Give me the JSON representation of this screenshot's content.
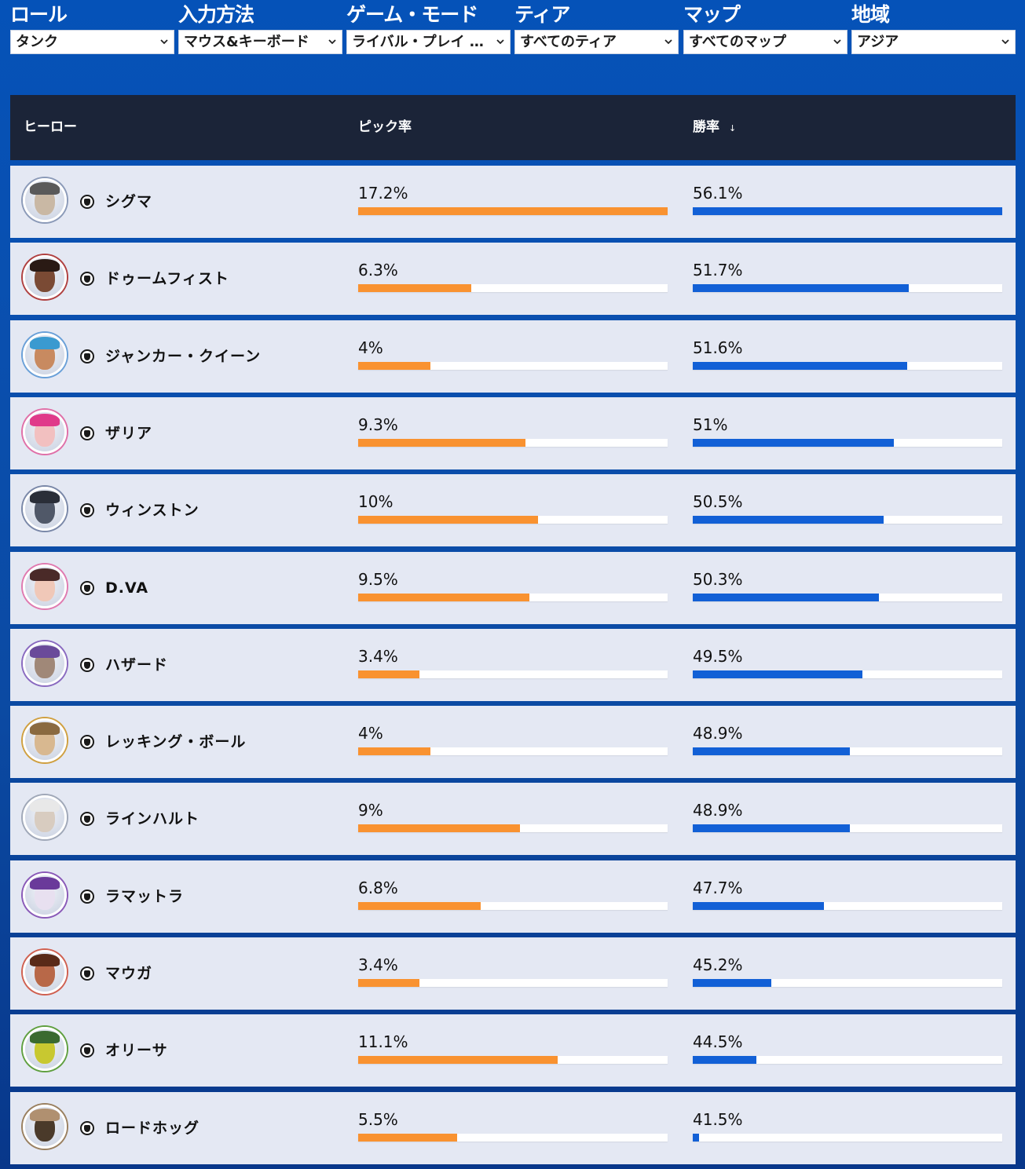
{
  "filters": [
    {
      "label": "ロール",
      "value": "タンク"
    },
    {
      "label": "入力方法",
      "value": "マウス&キーボード"
    },
    {
      "label": "ゲーム・モード",
      "value": "ライバル・プレイ …"
    },
    {
      "label": "ティア",
      "value": "すべてのティア"
    },
    {
      "label": "マップ",
      "value": "すべてのマップ"
    },
    {
      "label": "地域",
      "value": "アジア"
    }
  ],
  "table": {
    "headers": {
      "hero": "ヒーロー",
      "pick": "ピック率",
      "win": "勝率",
      "sort_indicator": "↓"
    },
    "rows": [
      {
        "name": "シグマ",
        "pick": "17.2%",
        "pick_pct": 17.2,
        "win": "56.1%",
        "win_pct": 56.1,
        "avatar_color": "#c9b8a4",
        "hair_color": "#5a5a5a",
        "ring_color": "#8b9ab8"
      },
      {
        "name": "ドゥームフィスト",
        "pick": "6.3%",
        "pick_pct": 6.3,
        "win": "51.7%",
        "win_pct": 51.7,
        "avatar_color": "#7a4a34",
        "hair_color": "#2a1a14",
        "ring_color": "#b04040"
      },
      {
        "name": "ジャンカー・クイーン",
        "pick": "4%",
        "pick_pct": 4,
        "win": "51.6%",
        "win_pct": 51.6,
        "avatar_color": "#c88a60",
        "hair_color": "#3a9ad0",
        "ring_color": "#6aa0d8"
      },
      {
        "name": "ザリア",
        "pick": "9.3%",
        "pick_pct": 9.3,
        "win": "51%",
        "win_pct": 51,
        "avatar_color": "#f2c0c0",
        "hair_color": "#e03a8a",
        "ring_color": "#e070a8"
      },
      {
        "name": "ウィンストン",
        "pick": "10%",
        "pick_pct": 10,
        "win": "50.5%",
        "win_pct": 50.5,
        "avatar_color": "#505868",
        "hair_color": "#2a2e38",
        "ring_color": "#7a88a8"
      },
      {
        "name": "D.VA",
        "pick": "9.5%",
        "pick_pct": 9.5,
        "win": "50.3%",
        "win_pct": 50.3,
        "avatar_color": "#f0c8b8",
        "hair_color": "#4a2a28",
        "ring_color": "#e07ab0"
      },
      {
        "name": "ハザード",
        "pick": "3.4%",
        "pick_pct": 3.4,
        "win": "49.5%",
        "win_pct": 49.5,
        "avatar_color": "#a08878",
        "hair_color": "#6a4a9a",
        "ring_color": "#8a6ac0"
      },
      {
        "name": "レッキング・ボール",
        "pick": "4%",
        "pick_pct": 4,
        "win": "48.9%",
        "win_pct": 48.9,
        "avatar_color": "#d8b890",
        "hair_color": "#8a6a40",
        "ring_color": "#d0a040"
      },
      {
        "name": "ラインハルト",
        "pick": "9%",
        "pick_pct": 9,
        "win": "48.9%",
        "win_pct": 48.9,
        "avatar_color": "#d8ccc0",
        "hair_color": "#e8e8e8",
        "ring_color": "#a0a8b8"
      },
      {
        "name": "ラマットラ",
        "pick": "6.8%",
        "pick_pct": 6.8,
        "win": "47.7%",
        "win_pct": 47.7,
        "avatar_color": "#e8e0f0",
        "hair_color": "#6a3a9a",
        "ring_color": "#8a5ab8"
      },
      {
        "name": "マウガ",
        "pick": "3.4%",
        "pick_pct": 3.4,
        "win": "45.2%",
        "win_pct": 45.2,
        "avatar_color": "#b86848",
        "hair_color": "#5a2a18",
        "ring_color": "#d06050"
      },
      {
        "name": "オリーサ",
        "pick": "11.1%",
        "pick_pct": 11.1,
        "win": "44.5%",
        "win_pct": 44.5,
        "avatar_color": "#c8c830",
        "hair_color": "#3a6a30",
        "ring_color": "#60a040"
      },
      {
        "name": "ロードホッグ",
        "pick": "5.5%",
        "pick_pct": 5.5,
        "win": "41.5%",
        "win_pct": 41.5,
        "avatar_color": "#4a3a2a",
        "hair_color": "#b09070",
        "ring_color": "#9a8060"
      }
    ]
  },
  "scale": {
    "pick_max": 17.2,
    "win_min": 41.5,
    "win_max": 56.1
  }
}
